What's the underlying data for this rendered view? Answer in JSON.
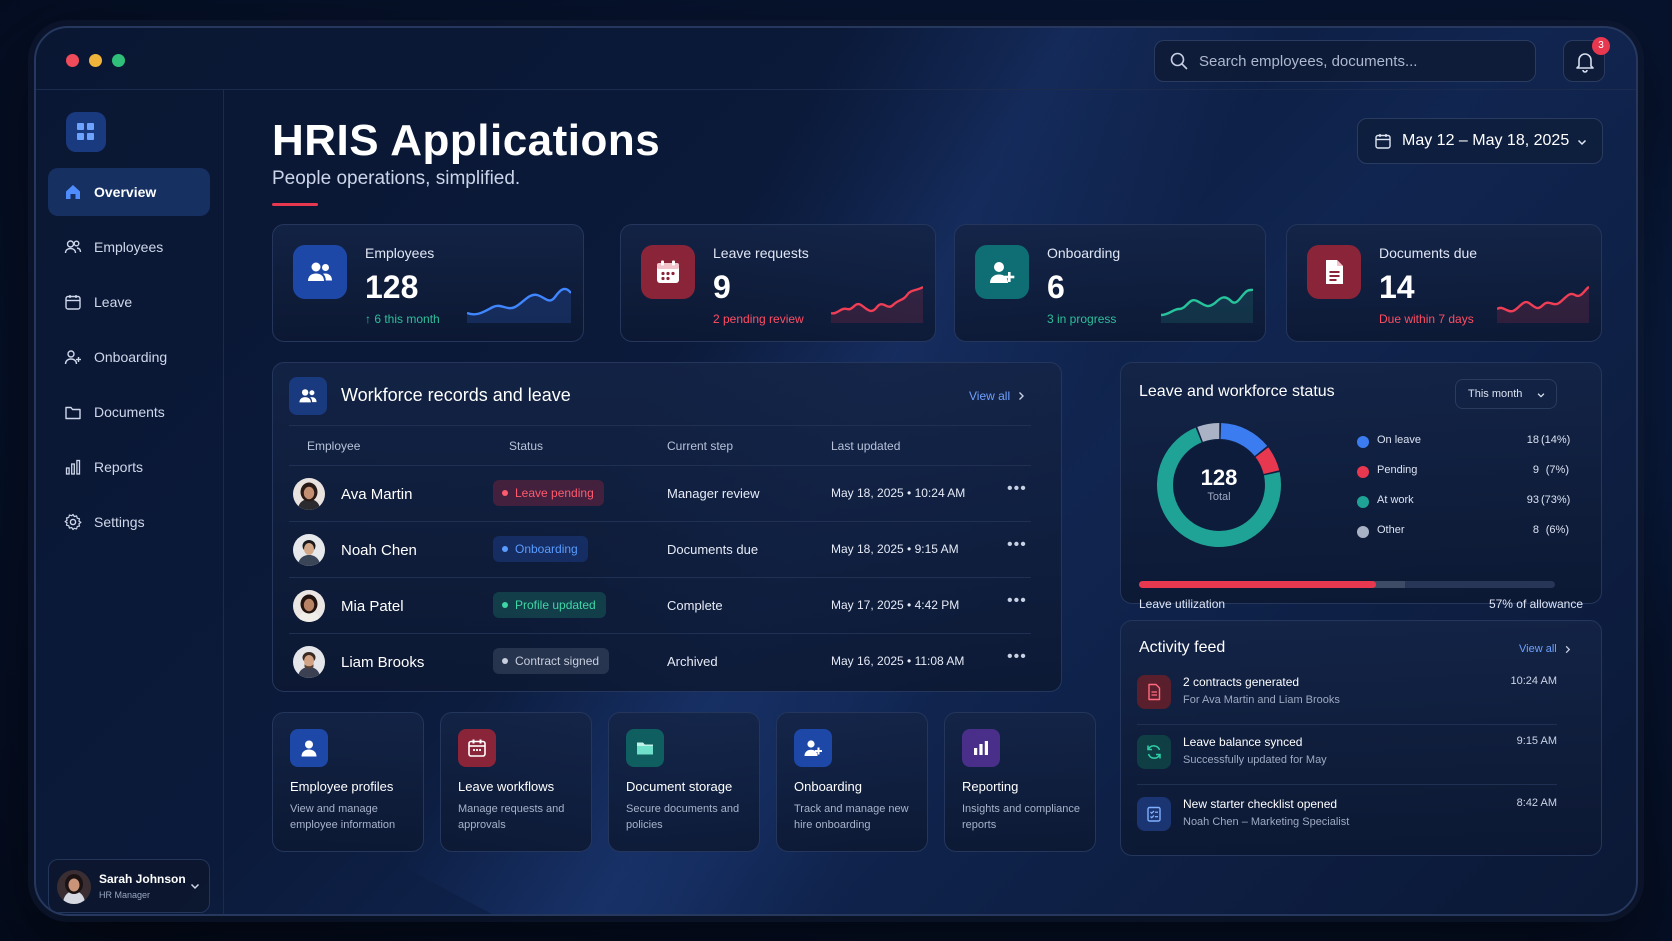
{
  "search": {
    "placeholder": "Search employees, documents..."
  },
  "notifications": {
    "count": "3"
  },
  "sidebar": {
    "items": [
      {
        "label": "Overview",
        "icon": "home-icon"
      },
      {
        "label": "Employees",
        "icon": "users-icon"
      },
      {
        "label": "Leave",
        "icon": "calendar-icon"
      },
      {
        "label": "Onboarding",
        "icon": "user-plus-icon"
      },
      {
        "label": "Documents",
        "icon": "folder-icon"
      },
      {
        "label": "Reports",
        "icon": "bar-chart-icon"
      },
      {
        "label": "Settings",
        "icon": "gear-icon"
      }
    ],
    "user": {
      "name": "Sarah Johnson",
      "role": "HR Manager"
    }
  },
  "header": {
    "title": "HRIS Applications",
    "subtitle": "People operations, simplified.",
    "date_range": "May 12 – May 18, 2025"
  },
  "stats": [
    {
      "label": "Employees",
      "value": "128",
      "note": "↑ 6 this month",
      "color": "#2fbf9a"
    },
    {
      "label": "Leave requests",
      "value": "9",
      "note": "2 pending review",
      "color": "#e8384f"
    },
    {
      "label": "Onboarding",
      "value": "6",
      "note": "3 in progress",
      "color": "#2fbf9a"
    },
    {
      "label": "Documents due",
      "value": "14",
      "note": "Due within 7 days",
      "color": "#e8384f"
    }
  ],
  "workforce": {
    "title": "Workforce records and leave",
    "view_all": "View all",
    "columns": [
      "Employee",
      "Status",
      "Current step",
      "Last updated"
    ],
    "rows": [
      {
        "name": "Ava Martin",
        "status": "Leave pending",
        "status_color": "#ff5a6e",
        "step": "Manager review",
        "updated": "May 18, 2025  •  10:24 AM"
      },
      {
        "name": "Noah Chen",
        "status": "Onboarding",
        "status_color": "#5a9bff",
        "step": "Documents due",
        "updated": "May 18, 2025  •  9:15 AM"
      },
      {
        "name": "Mia Patel",
        "status": "Profile updated",
        "status_color": "#3fd6a6",
        "step": "Complete",
        "updated": "May 17, 2025  •  4:42 PM"
      },
      {
        "name": "Liam Brooks",
        "status": "Contract signed",
        "status_color": "#c7cedd",
        "step": "Archived",
        "updated": "May 16, 2025  •  11:08 AM"
      }
    ]
  },
  "leave_status": {
    "title": "Leave and workforce status",
    "period": "This month",
    "total": "128",
    "total_label": "Total",
    "legend": [
      {
        "name": "On leave",
        "count": "18",
        "pct": "(14%)",
        "color": "#3b7df0",
        "value": 18
      },
      {
        "name": "Pending",
        "count": "9",
        "pct": "(7%)",
        "color": "#e8384f",
        "value": 9
      },
      {
        "name": "At work",
        "count": "93",
        "pct": "(73%)",
        "color": "#1fa396",
        "value": 93
      },
      {
        "name": "Other",
        "count": "8",
        "pct": "(6%)",
        "color": "#aab3c5",
        "value": 8
      }
    ],
    "utilization_label": "Leave utilization",
    "utilization_text": "57% of allowance",
    "utilization": 0.57
  },
  "activity": {
    "title": "Activity feed",
    "view_all": "View all",
    "items": [
      {
        "title": "2 contracts generated",
        "desc": "For Ava Martin and Liam Brooks",
        "time": "10:24 AM",
        "icon": "document-icon"
      },
      {
        "title": "Leave balance synced",
        "desc": "Successfully updated for May",
        "time": "9:15 AM",
        "icon": "sync-icon"
      },
      {
        "title": "New starter checklist opened",
        "desc": "Noah Chen – Marketing Specialist",
        "time": "8:42 AM",
        "icon": "checklist-icon"
      }
    ]
  },
  "tiles": [
    {
      "title": "Employee profiles",
      "desc": "View and manage employee information",
      "icon": "user-icon"
    },
    {
      "title": "Leave workflows",
      "desc": "Manage requests and approvals",
      "icon": "calendar-icon"
    },
    {
      "title": "Document storage",
      "desc": "Secure documents and policies",
      "icon": "folder-icon"
    },
    {
      "title": "Onboarding",
      "desc": "Track and manage new hire onboarding",
      "icon": "user-plus-icon"
    },
    {
      "title": "Reporting",
      "desc": "Insights and compliance reports",
      "icon": "bar-chart-icon"
    }
  ]
}
